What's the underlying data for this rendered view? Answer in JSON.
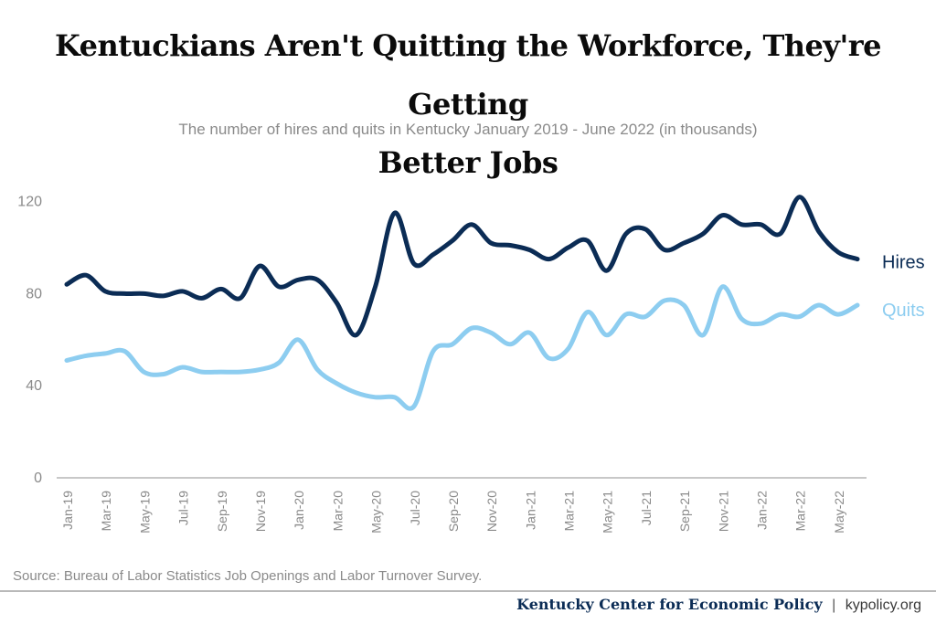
{
  "header": {
    "title_line1": "Kentuckians Aren't Quitting the Workforce, They're Getting",
    "title_line2": "Better Jobs",
    "subtitle": "The number of hires and quits in Kentucky January 2019 - June 2022 (in thousands)"
  },
  "source": "Source: Bureau of Labor Statistics Job Openings and Labor Turnover Survey.",
  "footer": {
    "org": "Kentucky Center for Economic Policy",
    "separator": "|",
    "site": "kypolicy.org"
  },
  "colors": {
    "hires": "#0b2c55",
    "quits": "#8dcdf0",
    "axis": "#c8c8c8",
    "tick_text": "#8a8a8a"
  },
  "chart_data": {
    "type": "line",
    "title": "Kentuckians Aren't Quitting the Workforce, They're Getting Better Jobs",
    "subtitle": "The number of hires and quits in Kentucky January 2019 - June 2022 (in thousands)",
    "ylim": [
      0,
      125
    ],
    "yticks": [
      "0",
      "40",
      "80",
      "120"
    ],
    "ytick_values": [
      0,
      40,
      80,
      120
    ],
    "grid": false,
    "x": [
      "Jan-19",
      "Feb-19",
      "Mar-19",
      "Apr-19",
      "May-19",
      "Jun-19",
      "Jul-19",
      "Aug-19",
      "Sep-19",
      "Oct-19",
      "Nov-19",
      "Dec-19",
      "Jan-20",
      "Feb-20",
      "Mar-20",
      "Apr-20",
      "May-20",
      "Jun-20",
      "Jul-20",
      "Aug-20",
      "Sep-20",
      "Oct-20",
      "Nov-20",
      "Dec-20",
      "Jan-21",
      "Feb-21",
      "Mar-21",
      "Apr-21",
      "May-21",
      "Jun-21",
      "Jul-21",
      "Aug-21",
      "Sep-21",
      "Oct-21",
      "Nov-21",
      "Dec-21",
      "Jan-22",
      "Feb-22",
      "Mar-22",
      "Apr-22",
      "May-22",
      "Jun-22"
    ],
    "xtick_labels": [
      "Jan-19",
      "Mar-19",
      "May-19",
      "Jul-19",
      "Sep-19",
      "Nov-19",
      "Jan-20",
      "Mar-20",
      "May-20",
      "Jul-20",
      "Sep-20",
      "Nov-20",
      "Jan-21",
      "Mar-21",
      "May-21",
      "Jul-21",
      "Sep-21",
      "Nov-21",
      "Jan-22",
      "Mar-22",
      "May-22"
    ],
    "series": [
      {
        "name": "Hires",
        "values": [
          84,
          88,
          81,
          80,
          80,
          79,
          81,
          78,
          82,
          78,
          92,
          83,
          86,
          86,
          76,
          62,
          83,
          115,
          93,
          97,
          103,
          110,
          102,
          101,
          99,
          95,
          100,
          103,
          90,
          106,
          108,
          99,
          102,
          106,
          114,
          110,
          110,
          106,
          122,
          107,
          98,
          95
        ]
      },
      {
        "name": "Quits",
        "values": [
          51,
          53,
          54,
          55,
          46,
          45,
          48,
          46,
          46,
          46,
          47,
          50,
          60,
          47,
          41,
          37,
          35,
          35,
          31,
          55,
          58,
          65,
          63,
          58,
          63,
          52,
          56,
          72,
          62,
          71,
          70,
          77,
          75,
          62,
          83,
          69,
          67,
          71,
          70,
          75,
          71,
          75
        ]
      }
    ]
  }
}
